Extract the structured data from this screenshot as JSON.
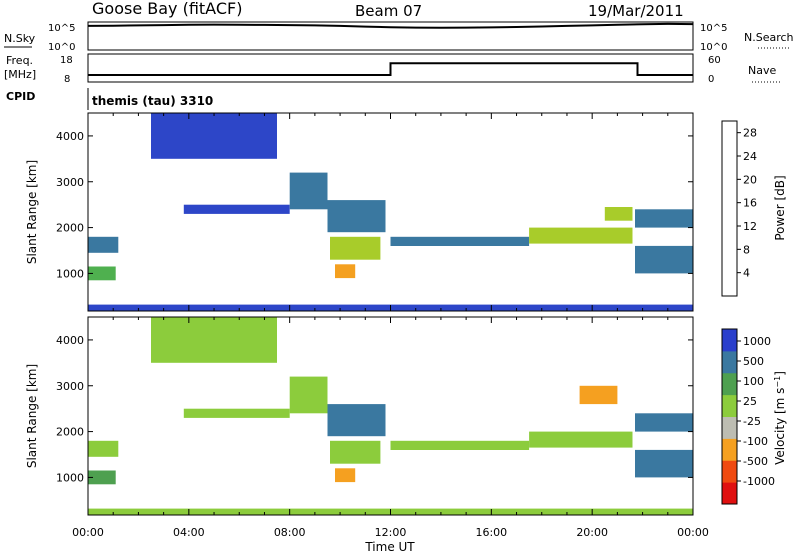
{
  "header": {
    "station": "Goose Bay (fitACF)",
    "beam": "Beam 07",
    "date": "19/Mar/2011"
  },
  "noise_panel": {
    "left_label": "N.Sky",
    "right_label": "N.Search",
    "left_ticks": [
      "10^5",
      "10^0"
    ],
    "right_ticks": [
      "10^5",
      "10^0"
    ]
  },
  "freq_panel": {
    "left_label": "Freq.",
    "left_unit": "[MHz]",
    "right_label": "Nave",
    "left_ticks": [
      "18",
      "8"
    ],
    "right_ticks": [
      "60",
      "0"
    ]
  },
  "cpid": {
    "label": "CPID",
    "value": "themis (tau) 3310"
  },
  "time_axis": {
    "label": "Time UT",
    "ticks": [
      "00:00",
      "04:00",
      "08:00",
      "12:00",
      "16:00",
      "20:00",
      "00:00"
    ]
  },
  "colors": {
    "power_scale": [
      "#1a1aff",
      "#2d46c8",
      "#3a78a0",
      "#3e9a7a",
      "#4fb04f",
      "#a8cc2a",
      "#f0d21a",
      "#f4a020",
      "#f06a10",
      "#e53010",
      "#d21414"
    ],
    "velocity_scale": [
      "#e01010",
      "#f04a10",
      "#f5a020",
      "#bdbdb2",
      "#8ccc3c",
      "#4ea050",
      "#3a78a0",
      "#2a3fcc"
    ],
    "ground": "#bdbdb2"
  },
  "chart_data": [
    {
      "type": "line",
      "title": "N.Sky / N.Search",
      "x": [
        0,
        1,
        2,
        3,
        4,
        5,
        6,
        7,
        8,
        9,
        10,
        11,
        12,
        13,
        14,
        15,
        16,
        17,
        18,
        19,
        20,
        21,
        22,
        23,
        24
      ],
      "series": [
        {
          "name": "N.Sky",
          "values": [
            20000,
            22000,
            25000,
            28000,
            32000,
            35000,
            33000,
            30000,
            28000,
            25000,
            20000,
            15000,
            12000,
            10000,
            9500,
            10000,
            11000,
            13000,
            16000,
            20000,
            25000,
            32000,
            40000,
            45000,
            42000
          ]
        }
      ],
      "yscale": "log",
      "ylim": [
        1,
        100000
      ]
    },
    {
      "type": "line",
      "title": "Freq. / Nave",
      "x": [
        0,
        12,
        12,
        21.8,
        21.8,
        24
      ],
      "series": [
        {
          "name": "Freq.",
          "values": [
            10.5,
            10.5,
            14.7,
            14.7,
            10.5,
            10.5
          ]
        }
      ],
      "ylim": [
        8,
        18
      ],
      "right_ylim": [
        0,
        60
      ]
    },
    {
      "type": "heatmap",
      "title": "Power",
      "ylabel": "Slant Range [km]",
      "xlabel": "Time UT",
      "xlim": [
        0,
        24
      ],
      "ylim": [
        180,
        4500
      ],
      "yticks": [
        1000,
        2000,
        3000,
        4000
      ],
      "colorbar": {
        "label": "Power [dB]",
        "range": [
          0,
          30
        ],
        "ticks": [
          4,
          8,
          12,
          16,
          20,
          24,
          28
        ]
      },
      "regions": [
        {
          "t0": 0.0,
          "t1": 1.1,
          "r0": 850,
          "r1": 1150,
          "value": 12
        },
        {
          "t0": 0.0,
          "t1": 1.2,
          "r0": 1450,
          "r1": 1800,
          "value": 6
        },
        {
          "t0": 3.8,
          "t1": 8.0,
          "r0": 2300,
          "r1": 2500,
          "value": 5
        },
        {
          "t0": 8.0,
          "t1": 9.5,
          "r0": 2400,
          "r1": 3200,
          "value": 6
        },
        {
          "t0": 9.5,
          "t1": 11.8,
          "r0": 1900,
          "r1": 2600,
          "value": 8
        },
        {
          "t0": 9.6,
          "t1": 11.6,
          "r0": 1300,
          "r1": 1800,
          "value": 14
        },
        {
          "t0": 9.8,
          "t1": 10.6,
          "r0": 900,
          "r1": 1200,
          "value": 20
        },
        {
          "t0": 12.0,
          "t1": 17.5,
          "r0": 1600,
          "r1": 1800,
          "value": 8
        },
        {
          "t0": 17.5,
          "t1": 21.6,
          "r0": 1650,
          "r1": 2000,
          "value": 14
        },
        {
          "t0": 20.5,
          "t1": 21.6,
          "r0": 2150,
          "r1": 2450,
          "value": 14
        },
        {
          "t0": 21.7,
          "t1": 24.0,
          "r0": 2000,
          "r1": 2400,
          "value": 8
        },
        {
          "t0": 21.7,
          "t1": 24.0,
          "r0": 1000,
          "r1": 1600,
          "value": 6
        },
        {
          "t0": 2.5,
          "t1": 7.5,
          "r0": 3500,
          "r1": 4500,
          "value": 5
        },
        {
          "t0": 0.0,
          "t1": 24.0,
          "r0": 180,
          "r1": 320,
          "value": 4
        }
      ]
    },
    {
      "type": "heatmap",
      "title": "Velocity",
      "ylabel": "Slant Range [km]",
      "xlabel": "Time UT",
      "xlim": [
        0,
        24
      ],
      "ylim": [
        180,
        4500
      ],
      "yticks": [
        1000,
        2000,
        3000,
        4000
      ],
      "colorbar": {
        "label": "Velocity [m s^-1]",
        "ticks": [
          1000,
          500,
          100,
          25,
          -25,
          -100,
          -500,
          -1000
        ]
      },
      "regions": [
        {
          "t0": 0.0,
          "t1": 1.1,
          "r0": 850,
          "r1": 1150,
          "value": 100
        },
        {
          "t0": 0.0,
          "t1": 1.2,
          "r0": 1450,
          "r1": 1800,
          "value": 0
        },
        {
          "t0": 3.8,
          "t1": 8.0,
          "r0": 2300,
          "r1": 2500,
          "value": 0
        },
        {
          "t0": 8.0,
          "t1": 9.5,
          "r0": 2400,
          "r1": 3200,
          "value": 0
        },
        {
          "t0": 9.5,
          "t1": 11.8,
          "r0": 1900,
          "r1": 2600,
          "value": 150
        },
        {
          "t0": 9.6,
          "t1": 11.6,
          "r0": 1300,
          "r1": 1800,
          "value": 0
        },
        {
          "t0": 9.8,
          "t1": 10.6,
          "r0": 900,
          "r1": 1200,
          "value": -300
        },
        {
          "t0": 12.0,
          "t1": 17.5,
          "r0": 1600,
          "r1": 1800,
          "value": 0
        },
        {
          "t0": 17.5,
          "t1": 21.6,
          "r0": 1650,
          "r1": 2000,
          "value": 0
        },
        {
          "t0": 19.5,
          "t1": 21.0,
          "r0": 2600,
          "r1": 3000,
          "value": -300
        },
        {
          "t0": 21.7,
          "t1": 24.0,
          "r0": 2000,
          "r1": 2400,
          "value": 150
        },
        {
          "t0": 21.7,
          "t1": 24.0,
          "r0": 1000,
          "r1": 1600,
          "value": 150
        },
        {
          "t0": 2.5,
          "t1": 7.5,
          "r0": 3500,
          "r1": 4500,
          "value": 0
        },
        {
          "t0": 0.0,
          "t1": 24.0,
          "r0": 180,
          "r1": 320,
          "value": 0
        }
      ]
    }
  ]
}
